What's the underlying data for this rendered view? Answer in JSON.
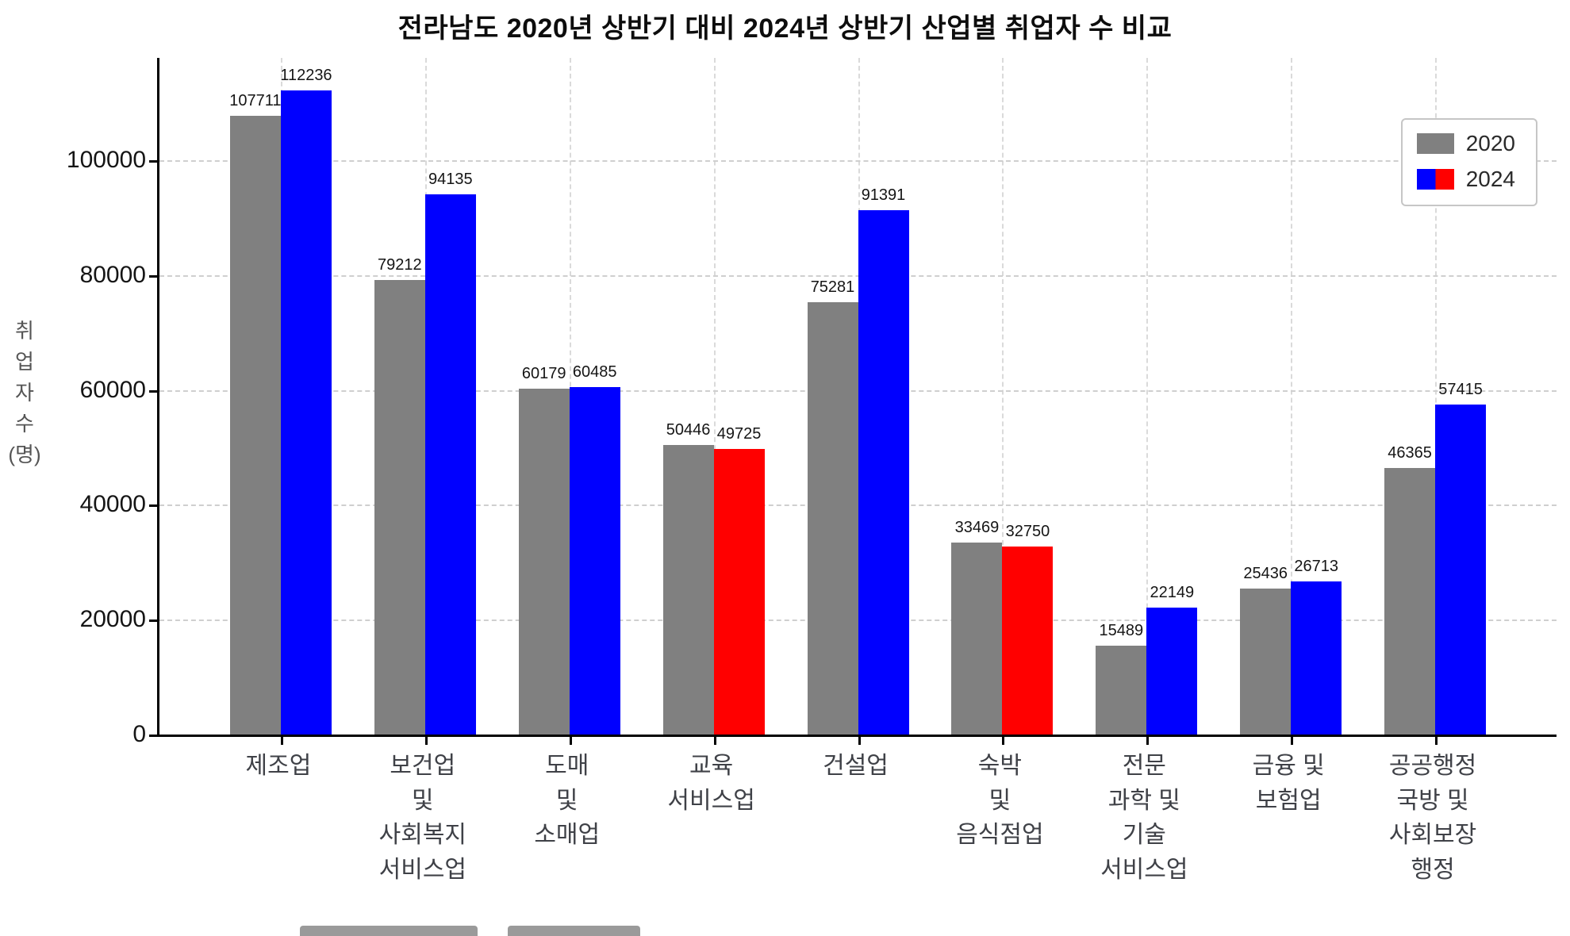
{
  "chart_data": {
    "type": "bar",
    "title": "전라남도 2020년 상반기 대비 2024년 상반기 산업별 취업자 수 비교",
    "ylabel": "취업자수(명)",
    "ylabel_vertical": "취\n업\n자\n수\n(명)",
    "categories": [
      [
        "제조업"
      ],
      [
        "보건업",
        "및",
        "사회복지",
        "서비스업"
      ],
      [
        "도매",
        "및",
        "소매업"
      ],
      [
        "교육",
        "서비스업"
      ],
      [
        "건설업"
      ],
      [
        "숙박",
        "및",
        "음식점업"
      ],
      [
        "전문",
        "과학 및",
        "기술",
        "서비스업"
      ],
      [
        "금융 및",
        "보험업"
      ],
      [
        "공공행정",
        "국방 및",
        "사회보장",
        "행정"
      ]
    ],
    "categories_flat": [
      "제조업",
      "보건업 및 사회복지 서비스업",
      "도매 및 소매업",
      "교육 서비스업",
      "건설업",
      "숙박 및 음식점업",
      "전문 과학 및 기술 서비스업",
      "금융 및 보험업",
      "공공행정 국방 및 사회보장 행정"
    ],
    "series": [
      {
        "name": "2020",
        "color": "#808080",
        "values": [
          107711,
          79212,
          60179,
          50446,
          75281,
          33469,
          15489,
          25436,
          46365
        ]
      },
      {
        "name": "2024",
        "colors": [
          "#0000ff",
          "#0000ff",
          "#0000ff",
          "#ff0000",
          "#0000ff",
          "#ff0000",
          "#0000ff",
          "#0000ff",
          "#0000ff"
        ],
        "values": [
          112236,
          94135,
          60485,
          49725,
          91391,
          32750,
          22149,
          26713,
          57415
        ]
      }
    ],
    "yticks": [
      0,
      20000,
      40000,
      60000,
      80000,
      100000
    ],
    "ylim": [
      0,
      117848
    ],
    "grid": {
      "style": "dashed",
      "color": "#cfcfcf",
      "horizontal": true,
      "vertical": true
    },
    "bar_color_semantics": {
      "year2020": "#808080",
      "increase_2024": "#0000ff",
      "decrease_2024": "#ff0000"
    },
    "legend_position": "top-right"
  },
  "legend": {
    "items": [
      {
        "label": "2020",
        "color": "#808080"
      },
      {
        "label": "2024",
        "colors": [
          "#0000ff",
          "#ff0000"
        ]
      }
    ]
  }
}
